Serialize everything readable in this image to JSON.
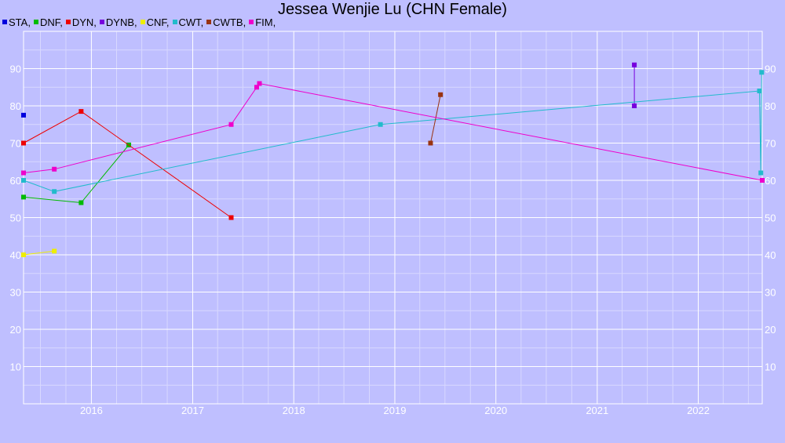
{
  "chart_data": {
    "type": "line",
    "title": "Jessea Wenjie Lu (CHN Female)",
    "xlabel": "",
    "ylabel": "",
    "xlim": [
      "2015-05-01",
      "2022-08-20"
    ],
    "ylim": [
      0,
      100
    ],
    "grid": true,
    "legend_position": "top-left",
    "x_ticks": [
      "2016",
      "2017",
      "2018",
      "2019",
      "2020",
      "2021",
      "2022"
    ],
    "y_ticks": [
      "10",
      "20",
      "30",
      "40",
      "50",
      "60",
      "70",
      "80",
      "90"
    ],
    "series": [
      {
        "name": "STA,",
        "color": "#0000dd",
        "points": [
          [
            "2015-05-01",
            77.5
          ]
        ]
      },
      {
        "name": "DNF,",
        "color": "#00bb00",
        "points": [
          [
            "2015-05-01",
            55.5
          ],
          [
            "2015-11-25",
            54
          ],
          [
            "2016-05-15",
            69.5
          ]
        ]
      },
      {
        "name": "DYN,",
        "color": "#ee0000",
        "points": [
          [
            "2015-05-01",
            70
          ],
          [
            "2015-11-25",
            78.5
          ],
          [
            "2017-05-20",
            50
          ]
        ]
      },
      {
        "name": "DYNB,",
        "color": "#7700dd",
        "points": [
          [
            "2021-05-15",
            91
          ],
          [
            "2021-05-15",
            80
          ]
        ]
      },
      {
        "name": "CNF,",
        "color": "#eeee00",
        "points": [
          [
            "2015-05-01",
            40
          ],
          [
            "2015-08-20",
            41
          ]
        ]
      },
      {
        "name": "CWT,",
        "color": "#22bbcc",
        "points": [
          [
            "2015-05-01",
            60
          ],
          [
            "2015-08-20",
            57
          ],
          [
            "2018-11-10",
            75
          ],
          [
            "2022-08-10",
            84
          ],
          [
            "2022-08-15",
            62
          ],
          [
            "2022-08-18",
            89
          ]
        ]
      },
      {
        "name": "CWTB,",
        "color": "#993311",
        "points": [
          [
            "2019-05-10",
            70
          ],
          [
            "2019-06-15",
            83
          ]
        ]
      },
      {
        "name": "FIM,",
        "color": "#ee00cc",
        "points": [
          [
            "2015-05-01",
            62
          ],
          [
            "2015-08-20",
            63
          ],
          [
            "2017-05-20",
            75
          ],
          [
            "2017-08-20",
            85
          ],
          [
            "2017-08-30",
            86
          ],
          [
            "2022-08-20",
            60
          ]
        ]
      }
    ]
  }
}
